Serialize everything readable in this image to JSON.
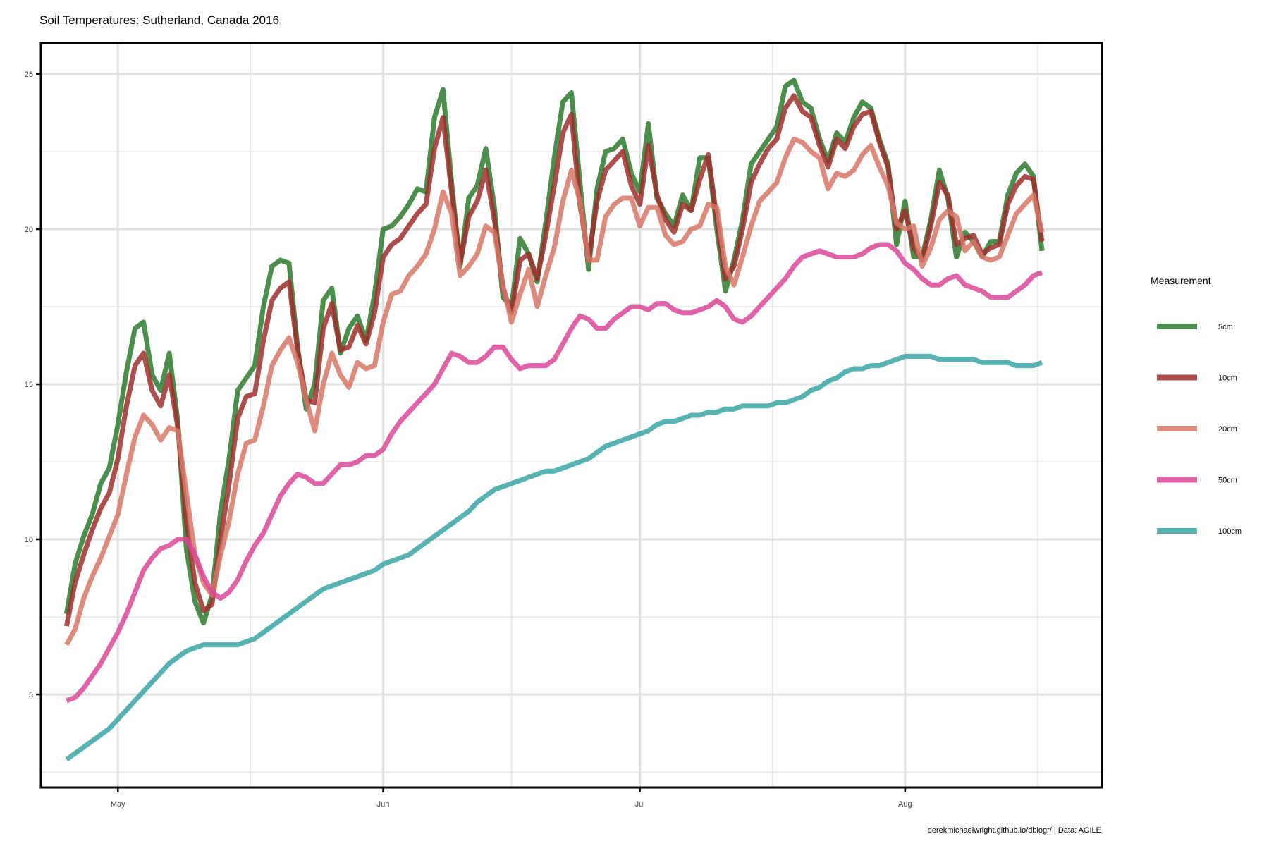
{
  "chart_data": {
    "type": "line",
    "title": "Soil Temperatures: Sutherland, Canada 2016",
    "xlabel": "",
    "ylabel": "",
    "caption": "derekmichaelwright.github.io/dblogr/ | Data: AGILE",
    "x_range": [
      "2016-04-22",
      "2016-08-24"
    ],
    "ylim": [
      2,
      26
    ],
    "y_ticks": [
      5,
      10,
      15,
      20,
      25
    ],
    "x_ticks": [
      {
        "date": "2016-05-01",
        "label": "May"
      },
      {
        "date": "2016-06-01",
        "label": "Jun"
      },
      {
        "date": "2016-07-01",
        "label": "Jul"
      },
      {
        "date": "2016-08-01",
        "label": "Aug"
      }
    ],
    "grid": true,
    "legend": {
      "title": "Measurement",
      "position": "right"
    },
    "x_start": "2016-04-25",
    "series": [
      {
        "name": "5cm",
        "color": "#2d7a2d",
        "values": [
          7.6,
          9.2,
          10.1,
          10.8,
          11.8,
          12.3,
          13.7,
          15.4,
          16.8,
          17.0,
          15.3,
          14.8,
          16.0,
          13.8,
          9.7,
          8.0,
          7.3,
          8.2,
          10.9,
          12.6,
          14.8,
          15.2,
          15.6,
          17.5,
          18.8,
          19.0,
          18.9,
          16.2,
          14.2,
          15.0,
          17.7,
          18.1,
          16.0,
          16.8,
          17.2,
          16.4,
          17.9,
          20.0,
          20.1,
          20.4,
          20.8,
          21.3,
          21.2,
          23.6,
          24.5,
          21.5,
          18.8,
          21.0,
          21.4,
          22.6,
          20.7,
          17.8,
          17.5,
          19.7,
          19.2,
          18.3,
          20.2,
          22.3,
          24.1,
          24.4,
          21.5,
          18.7,
          21.3,
          22.5,
          22.6,
          22.9,
          21.8,
          21.2,
          23.4,
          21.0,
          20.5,
          20.1,
          21.1,
          20.6,
          22.3,
          22.3,
          20.0,
          18.0,
          19.0,
          20.3,
          22.1,
          22.5,
          22.9,
          23.3,
          24.6,
          24.8,
          24.1,
          23.9,
          22.9,
          22.2,
          23.1,
          22.8,
          23.6,
          24.1,
          23.9,
          22.9,
          22.1,
          19.5,
          20.9,
          19.1,
          19.1,
          20.3,
          21.9,
          21.0,
          19.1,
          19.9,
          19.6,
          19.1,
          19.6,
          19.6,
          21.1,
          21.8,
          22.1,
          21.7,
          19.3
        ]
      },
      {
        "name": "10cm",
        "color": "#9e2f2b",
        "values": [
          7.2,
          8.6,
          9.5,
          10.3,
          11.0,
          11.5,
          12.6,
          14.3,
          15.6,
          16.0,
          14.8,
          14.3,
          15.3,
          13.6,
          10.6,
          8.6,
          7.7,
          7.9,
          10.0,
          11.8,
          13.9,
          14.6,
          14.7,
          16.4,
          17.7,
          18.1,
          18.3,
          16.1,
          14.5,
          14.4,
          16.8,
          17.6,
          16.1,
          16.2,
          16.9,
          16.3,
          17.3,
          19.1,
          19.5,
          19.7,
          20.1,
          20.5,
          20.8,
          22.6,
          23.6,
          21.2,
          18.9,
          20.4,
          20.9,
          21.9,
          20.3,
          18.1,
          17.3,
          19.0,
          19.2,
          18.4,
          19.8,
          21.4,
          23.1,
          23.7,
          20.8,
          19.0,
          20.9,
          21.9,
          22.2,
          22.5,
          21.4,
          20.8,
          22.7,
          21.1,
          20.3,
          19.9,
          20.8,
          20.6,
          21.6,
          22.4,
          20.3,
          18.4,
          18.8,
          20.0,
          21.5,
          22.1,
          22.6,
          22.9,
          23.9,
          24.3,
          23.8,
          23.6,
          22.7,
          22.0,
          22.9,
          22.6,
          23.3,
          23.7,
          23.8,
          22.8,
          22.0,
          20.0,
          20.6,
          19.4,
          19.0,
          20.1,
          21.5,
          21.1,
          19.5,
          19.7,
          19.8,
          19.2,
          19.4,
          19.5,
          20.8,
          21.4,
          21.7,
          21.6,
          19.6
        ]
      },
      {
        "name": "20cm",
        "color": "#d67766",
        "values": [
          6.6,
          7.1,
          8.1,
          8.8,
          9.4,
          10.1,
          10.8,
          12.1,
          13.3,
          14.0,
          13.7,
          13.2,
          13.6,
          13.5,
          11.5,
          9.5,
          8.6,
          8.2,
          9.5,
          10.6,
          12.1,
          13.1,
          13.2,
          14.3,
          15.6,
          16.1,
          16.5,
          15.7,
          14.5,
          13.5,
          15.0,
          16.0,
          15.3,
          14.9,
          15.7,
          15.5,
          15.6,
          17.0,
          17.9,
          18.0,
          18.5,
          18.8,
          19.2,
          20.0,
          21.2,
          20.5,
          18.5,
          18.8,
          19.2,
          20.1,
          19.9,
          18.2,
          17.0,
          17.9,
          18.7,
          17.5,
          18.5,
          19.4,
          20.9,
          21.9,
          20.9,
          19.0,
          19.0,
          20.4,
          20.8,
          21.0,
          21.0,
          20.1,
          20.7,
          20.7,
          19.8,
          19.5,
          19.6,
          20.0,
          20.1,
          20.8,
          20.7,
          18.8,
          18.2,
          19.1,
          20.1,
          20.9,
          21.2,
          21.5,
          22.3,
          22.9,
          22.8,
          22.5,
          22.3,
          21.3,
          21.8,
          21.7,
          21.9,
          22.4,
          22.7,
          22.0,
          21.4,
          20.2,
          20.0,
          20.1,
          18.8,
          19.4,
          20.3,
          20.6,
          20.4,
          19.3,
          19.6,
          19.1,
          19.0,
          19.1,
          19.8,
          20.5,
          20.8,
          21.1,
          19.9
        ]
      },
      {
        "name": "50cm",
        "color": "#d94896",
        "values": [
          4.8,
          4.9,
          5.2,
          5.6,
          6.0,
          6.5,
          7.0,
          7.6,
          8.3,
          9.0,
          9.4,
          9.7,
          9.8,
          10.0,
          10.0,
          9.5,
          8.8,
          8.3,
          8.1,
          8.3,
          8.7,
          9.3,
          9.8,
          10.2,
          10.8,
          11.4,
          11.8,
          12.1,
          12.0,
          11.8,
          11.8,
          12.1,
          12.4,
          12.4,
          12.5,
          12.7,
          12.7,
          12.9,
          13.4,
          13.8,
          14.1,
          14.4,
          14.7,
          15.0,
          15.5,
          16.0,
          15.9,
          15.7,
          15.7,
          15.9,
          16.2,
          16.2,
          15.8,
          15.5,
          15.6,
          15.6,
          15.6,
          15.8,
          16.3,
          16.8,
          17.2,
          17.1,
          16.8,
          16.8,
          17.1,
          17.3,
          17.5,
          17.5,
          17.4,
          17.6,
          17.6,
          17.4,
          17.3,
          17.3,
          17.4,
          17.5,
          17.7,
          17.5,
          17.1,
          17.0,
          17.2,
          17.5,
          17.8,
          18.1,
          18.4,
          18.8,
          19.1,
          19.2,
          19.3,
          19.2,
          19.1,
          19.1,
          19.1,
          19.2,
          19.4,
          19.5,
          19.5,
          19.3,
          18.9,
          18.7,
          18.4,
          18.2,
          18.2,
          18.4,
          18.5,
          18.2,
          18.1,
          18.0,
          17.8,
          17.8,
          17.8,
          18.0,
          18.2,
          18.5,
          18.6
        ]
      },
      {
        "name": "100cm",
        "color": "#3aa5a5",
        "values": [
          2.9,
          3.1,
          3.3,
          3.5,
          3.7,
          3.9,
          4.2,
          4.5,
          4.8,
          5.1,
          5.4,
          5.7,
          6.0,
          6.2,
          6.4,
          6.5,
          6.6,
          6.6,
          6.6,
          6.6,
          6.6,
          6.7,
          6.8,
          7.0,
          7.2,
          7.4,
          7.6,
          7.8,
          8.0,
          8.2,
          8.4,
          8.5,
          8.6,
          8.7,
          8.8,
          8.9,
          9.0,
          9.2,
          9.3,
          9.4,
          9.5,
          9.7,
          9.9,
          10.1,
          10.3,
          10.5,
          10.7,
          10.9,
          11.2,
          11.4,
          11.6,
          11.7,
          11.8,
          11.9,
          12.0,
          12.1,
          12.2,
          12.2,
          12.3,
          12.4,
          12.5,
          12.6,
          12.8,
          13.0,
          13.1,
          13.2,
          13.3,
          13.4,
          13.5,
          13.7,
          13.8,
          13.8,
          13.9,
          14.0,
          14.0,
          14.1,
          14.1,
          14.2,
          14.2,
          14.3,
          14.3,
          14.3,
          14.3,
          14.4,
          14.4,
          14.5,
          14.6,
          14.8,
          14.9,
          15.1,
          15.2,
          15.4,
          15.5,
          15.5,
          15.6,
          15.6,
          15.7,
          15.8,
          15.9,
          15.9,
          15.9,
          15.9,
          15.8,
          15.8,
          15.8,
          15.8,
          15.8,
          15.7,
          15.7,
          15.7,
          15.7,
          15.6,
          15.6,
          15.6,
          15.7
        ]
      }
    ]
  }
}
